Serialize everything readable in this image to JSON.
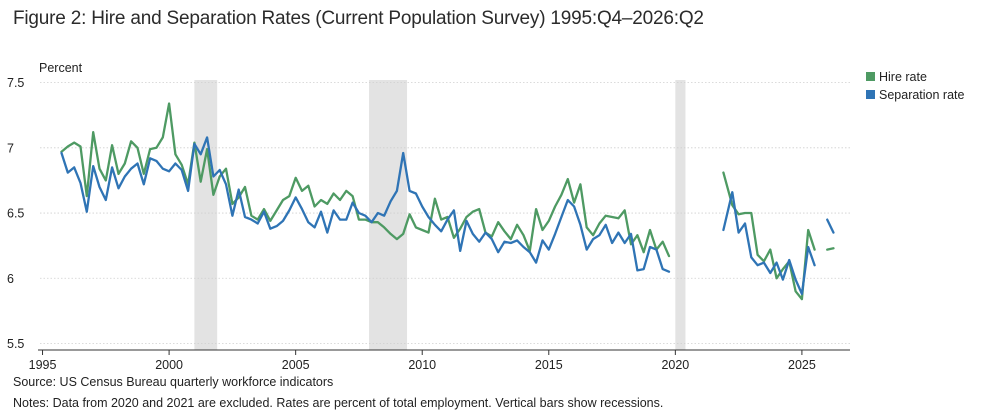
{
  "figure": {
    "title": "Figure 2: Hire and Separation Rates (Current Population Survey) 1995:Q4–2026:Q2",
    "source": "Source: US Census Bureau quarterly workforce indicators",
    "notes": "Notes: Data from 2020 and 2021 are excluded. Rates are percent of total employment. Vertical bars show recessions."
  },
  "chart_data": {
    "type": "line",
    "title": "Figure 2: Hire and Separation Rates (Current Population Survey) 1995:Q4–2026:Q2",
    "ylabel": "Percent",
    "xlabel": "",
    "xlim": [
      1994.9,
      2026.9
    ],
    "ylim": [
      5.45,
      7.52
    ],
    "x_ticks": [
      1995,
      2000,
      2005,
      2010,
      2015,
      2020,
      2025
    ],
    "x_tick_labels": [
      "1995",
      "2000",
      "2005",
      "2010",
      "2015",
      "2020",
      "2025"
    ],
    "y_ticks": [
      5.5,
      6,
      6.5,
      7,
      7.5
    ],
    "y_tick_labels": [
      "5.5",
      "6",
      "6.5",
      "7",
      "7.5"
    ],
    "grid": "horizontal",
    "legend_position": "top-right",
    "recessions": [
      [
        2001.0,
        2001.9
      ],
      [
        2007.9,
        2009.4
      ],
      [
        2020.0,
        2020.4
      ]
    ],
    "series": [
      {
        "name": "Hire rate",
        "color": "#4e9a63",
        "segments": [
          [
            [
              1995.75,
              6.97
            ],
            [
              1996.0,
              7.01
            ],
            [
              1996.25,
              7.04
            ],
            [
              1996.5,
              7.01
            ],
            [
              1996.75,
              6.63
            ],
            [
              1997.0,
              7.12
            ],
            [
              1997.25,
              6.84
            ],
            [
              1997.5,
              6.75
            ],
            [
              1997.75,
              7.02
            ],
            [
              1998.0,
              6.8
            ],
            [
              1998.25,
              6.88
            ],
            [
              1998.5,
              7.05
            ],
            [
              1998.75,
              7.0
            ],
            [
              1999.0,
              6.8
            ],
            [
              1999.25,
              6.99
            ],
            [
              1999.5,
              7.0
            ],
            [
              1999.75,
              7.08
            ],
            [
              2000.0,
              7.34
            ],
            [
              2000.25,
              6.95
            ],
            [
              2000.5,
              6.87
            ],
            [
              2000.75,
              6.72
            ],
            [
              2001.0,
              7.04
            ],
            [
              2001.25,
              6.74
            ],
            [
              2001.5,
              6.99
            ],
            [
              2001.75,
              6.64
            ],
            [
              2002.0,
              6.78
            ],
            [
              2002.25,
              6.84
            ],
            [
              2002.5,
              6.57
            ],
            [
              2002.75,
              6.62
            ],
            [
              2003.0,
              6.7
            ],
            [
              2003.25,
              6.48
            ],
            [
              2003.5,
              6.45
            ],
            [
              2003.75,
              6.53
            ],
            [
              2004.0,
              6.44
            ],
            [
              2004.25,
              6.52
            ],
            [
              2004.5,
              6.6
            ],
            [
              2004.75,
              6.63
            ],
            [
              2005.0,
              6.77
            ],
            [
              2005.25,
              6.67
            ],
            [
              2005.5,
              6.71
            ],
            [
              2005.75,
              6.55
            ],
            [
              2006.0,
              6.6
            ],
            [
              2006.25,
              6.57
            ],
            [
              2006.5,
              6.65
            ],
            [
              2006.75,
              6.6
            ],
            [
              2007.0,
              6.67
            ],
            [
              2007.25,
              6.63
            ],
            [
              2007.5,
              6.45
            ],
            [
              2007.75,
              6.45
            ],
            [
              2008.0,
              6.43
            ],
            [
              2008.25,
              6.43
            ],
            [
              2008.5,
              6.39
            ],
            [
              2008.75,
              6.34
            ],
            [
              2009.0,
              6.3
            ],
            [
              2009.25,
              6.34
            ],
            [
              2009.5,
              6.49
            ],
            [
              2009.75,
              6.39
            ],
            [
              2010.0,
              6.37
            ],
            [
              2010.25,
              6.35
            ],
            [
              2010.5,
              6.61
            ],
            [
              2010.75,
              6.45
            ],
            [
              2011.0,
              6.47
            ],
            [
              2011.25,
              6.31
            ],
            [
              2011.5,
              6.38
            ],
            [
              2011.75,
              6.47
            ],
            [
              2012.0,
              6.51
            ],
            [
              2012.25,
              6.53
            ],
            [
              2012.5,
              6.35
            ],
            [
              2012.75,
              6.32
            ],
            [
              2013.0,
              6.43
            ],
            [
              2013.25,
              6.36
            ],
            [
              2013.5,
              6.3
            ],
            [
              2013.75,
              6.41
            ],
            [
              2014.0,
              6.33
            ],
            [
              2014.25,
              6.21
            ],
            [
              2014.5,
              6.53
            ],
            [
              2014.75,
              6.37
            ],
            [
              2015.0,
              6.44
            ],
            [
              2015.25,
              6.55
            ],
            [
              2015.5,
              6.64
            ],
            [
              2015.75,
              6.76
            ],
            [
              2016.0,
              6.58
            ],
            [
              2016.25,
              6.72
            ],
            [
              2016.5,
              6.39
            ],
            [
              2016.75,
              6.33
            ],
            [
              2017.0,
              6.42
            ],
            [
              2017.25,
              6.48
            ],
            [
              2017.5,
              6.47
            ],
            [
              2017.75,
              6.46
            ],
            [
              2018.0,
              6.52
            ],
            [
              2018.25,
              6.26
            ],
            [
              2018.5,
              6.33
            ],
            [
              2018.75,
              6.2
            ],
            [
              2019.0,
              6.37
            ],
            [
              2019.25,
              6.22
            ],
            [
              2019.5,
              6.28
            ],
            [
              2019.75,
              6.17
            ]
          ],
          [
            [
              2021.9,
              6.81
            ],
            [
              2022.25,
              6.56
            ],
            [
              2022.5,
              6.49
            ],
            [
              2022.75,
              6.5
            ],
            [
              2023.0,
              6.5
            ],
            [
              2023.25,
              6.18
            ],
            [
              2023.5,
              6.13
            ],
            [
              2023.75,
              6.22
            ],
            [
              2024.0,
              6.0
            ],
            [
              2024.25,
              6.07
            ],
            [
              2024.5,
              6.13
            ],
            [
              2024.75,
              5.9
            ],
            [
              2025.0,
              5.84
            ],
            [
              2025.25,
              6.37
            ],
            [
              2025.5,
              6.22
            ]
          ],
          [
            [
              2026.0,
              6.22
            ],
            [
              2026.25,
              6.23
            ]
          ]
        ]
      },
      {
        "name": "Separation rate",
        "color": "#2f74b5",
        "segments": [
          [
            [
              1995.75,
              6.96
            ],
            [
              1996.0,
              6.81
            ],
            [
              1996.25,
              6.85
            ],
            [
              1996.5,
              6.73
            ],
            [
              1996.75,
              6.51
            ],
            [
              1997.0,
              6.86
            ],
            [
              1997.25,
              6.7
            ],
            [
              1997.5,
              6.6
            ],
            [
              1997.75,
              6.85
            ],
            [
              1998.0,
              6.69
            ],
            [
              1998.25,
              6.78
            ],
            [
              1998.5,
              6.84
            ],
            [
              1998.75,
              6.88
            ],
            [
              1999.0,
              6.72
            ],
            [
              1999.25,
              6.92
            ],
            [
              1999.5,
              6.9
            ],
            [
              1999.75,
              6.84
            ],
            [
              2000.0,
              6.82
            ],
            [
              2000.25,
              6.88
            ],
            [
              2000.5,
              6.83
            ],
            [
              2000.75,
              6.67
            ],
            [
              2001.0,
              7.03
            ],
            [
              2001.25,
              6.95
            ],
            [
              2001.5,
              7.08
            ],
            [
              2001.75,
              6.78
            ],
            [
              2002.0,
              6.83
            ],
            [
              2002.25,
              6.72
            ],
            [
              2002.5,
              6.48
            ],
            [
              2002.75,
              6.68
            ],
            [
              2003.0,
              6.47
            ],
            [
              2003.25,
              6.45
            ],
            [
              2003.5,
              6.42
            ],
            [
              2003.75,
              6.51
            ],
            [
              2004.0,
              6.38
            ],
            [
              2004.25,
              6.4
            ],
            [
              2004.5,
              6.44
            ],
            [
              2004.75,
              6.52
            ],
            [
              2005.0,
              6.62
            ],
            [
              2005.25,
              6.53
            ],
            [
              2005.5,
              6.43
            ],
            [
              2005.75,
              6.39
            ],
            [
              2006.0,
              6.51
            ],
            [
              2006.25,
              6.35
            ],
            [
              2006.5,
              6.52
            ],
            [
              2006.75,
              6.45
            ],
            [
              2007.0,
              6.45
            ],
            [
              2007.25,
              6.58
            ],
            [
              2007.5,
              6.5
            ],
            [
              2007.75,
              6.48
            ],
            [
              2008.0,
              6.43
            ],
            [
              2008.25,
              6.5
            ],
            [
              2008.5,
              6.48
            ],
            [
              2008.75,
              6.59
            ],
            [
              2009.0,
              6.67
            ],
            [
              2009.25,
              6.96
            ],
            [
              2009.5,
              6.67
            ],
            [
              2009.75,
              6.65
            ],
            [
              2010.0,
              6.55
            ],
            [
              2010.25,
              6.47
            ],
            [
              2010.5,
              6.41
            ],
            [
              2010.75,
              6.36
            ],
            [
              2011.0,
              6.45
            ],
            [
              2011.25,
              6.52
            ],
            [
              2011.5,
              6.21
            ],
            [
              2011.75,
              6.44
            ],
            [
              2012.0,
              6.34
            ],
            [
              2012.25,
              6.28
            ],
            [
              2012.5,
              6.35
            ],
            [
              2012.75,
              6.3
            ],
            [
              2013.0,
              6.2
            ],
            [
              2013.25,
              6.28
            ],
            [
              2013.5,
              6.27
            ],
            [
              2013.75,
              6.29
            ],
            [
              2014.0,
              6.24
            ],
            [
              2014.25,
              6.2
            ],
            [
              2014.5,
              6.12
            ],
            [
              2014.75,
              6.29
            ],
            [
              2015.0,
              6.22
            ],
            [
              2015.25,
              6.34
            ],
            [
              2015.5,
              6.47
            ],
            [
              2015.75,
              6.6
            ],
            [
              2016.0,
              6.55
            ],
            [
              2016.25,
              6.41
            ],
            [
              2016.5,
              6.22
            ],
            [
              2016.75,
              6.3
            ],
            [
              2017.0,
              6.33
            ],
            [
              2017.25,
              6.41
            ],
            [
              2017.5,
              6.27
            ],
            [
              2017.75,
              6.35
            ],
            [
              2018.0,
              6.27
            ],
            [
              2018.25,
              6.34
            ],
            [
              2018.5,
              6.06
            ],
            [
              2018.75,
              6.07
            ],
            [
              2019.0,
              6.24
            ],
            [
              2019.25,
              6.22
            ],
            [
              2019.5,
              6.07
            ],
            [
              2019.75,
              6.05
            ]
          ],
          [
            [
              2021.9,
              6.37
            ],
            [
              2022.25,
              6.66
            ],
            [
              2022.5,
              6.35
            ],
            [
              2022.75,
              6.42
            ],
            [
              2023.0,
              6.16
            ],
            [
              2023.25,
              6.1
            ],
            [
              2023.5,
              6.12
            ],
            [
              2023.75,
              6.04
            ],
            [
              2024.0,
              6.12
            ],
            [
              2024.25,
              5.99
            ],
            [
              2024.5,
              6.14
            ],
            [
              2024.75,
              5.99
            ],
            [
              2025.0,
              5.88
            ],
            [
              2025.25,
              6.24
            ],
            [
              2025.5,
              6.1
            ]
          ],
          [
            [
              2026.0,
              6.45
            ],
            [
              2026.25,
              6.35
            ]
          ]
        ]
      }
    ]
  }
}
